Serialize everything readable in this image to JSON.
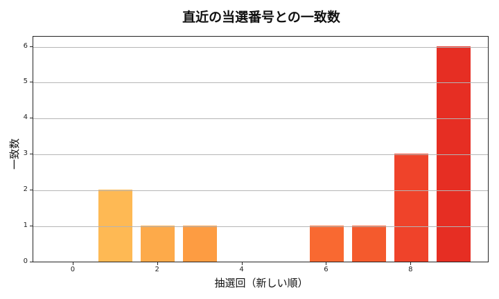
{
  "chart_data": {
    "type": "bar",
    "title": "直近の当選番号との一致数",
    "xlabel": "抽選回（新しい順）",
    "ylabel": "一致数",
    "categories": [
      0,
      1,
      2,
      3,
      4,
      5,
      6,
      7,
      8,
      9
    ],
    "values": [
      0,
      2,
      1,
      1,
      0,
      0,
      1,
      1,
      3,
      6
    ],
    "bar_colors": [
      "#fec561",
      "#feb954",
      "#fdaa4a",
      "#fd9c42",
      "#fd8a3b",
      "#fc7434",
      "#f96931",
      "#f45a2d",
      "#ef432a",
      "#e62e23"
    ],
    "xticks": [
      0,
      2,
      4,
      6,
      8
    ],
    "yticks": [
      0,
      1,
      2,
      3,
      4,
      5,
      6
    ],
    "xlim": [
      -0.95,
      9.85
    ],
    "ylim": [
      0,
      6.3
    ],
    "grid": "y",
    "legend": null
  }
}
